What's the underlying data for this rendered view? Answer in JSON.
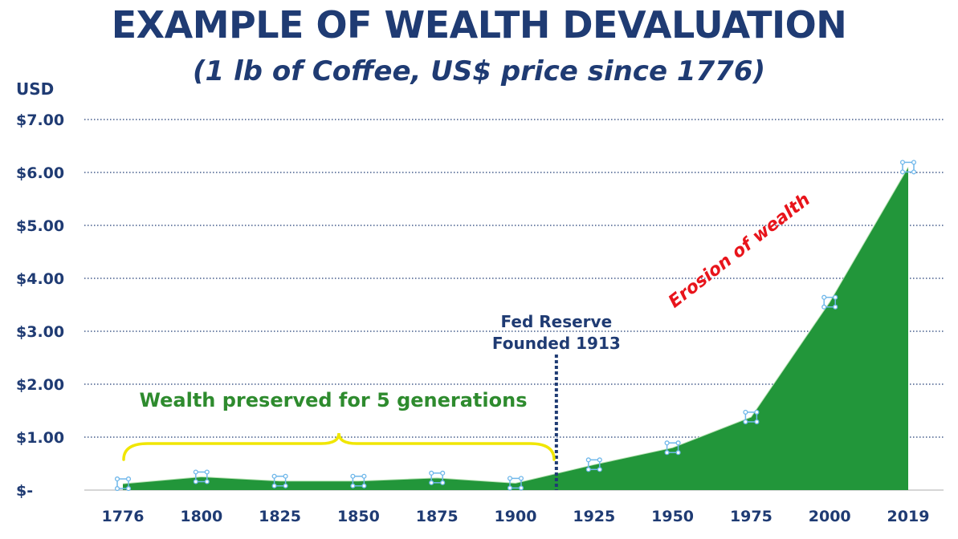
{
  "title": "EXAMPLE OF WEALTH DEVALUATION",
  "subtitle": "(1 lb of Coffee, US$ price since 1776)",
  "chart_data": {
    "type": "area",
    "ylabel": "USD",
    "ylim": [
      0,
      7
    ],
    "y_ticks": [
      {
        "value": 0,
        "label": "$-"
      },
      {
        "value": 1,
        "label": "$1.00"
      },
      {
        "value": 2,
        "label": "$2.00"
      },
      {
        "value": 3,
        "label": "$3.00"
      },
      {
        "value": 4,
        "label": "$4.00"
      },
      {
        "value": 5,
        "label": "$5.00"
      },
      {
        "value": 6,
        "label": "$6.00"
      },
      {
        "value": 7,
        "label": "$7.00"
      }
    ],
    "categories": [
      "1776",
      "1800",
      "1825",
      "1850",
      "1875",
      "1900",
      "1925",
      "1950",
      "1975",
      "2000",
      "2019"
    ],
    "values": [
      0.12,
      0.25,
      0.17,
      0.17,
      0.23,
      0.13,
      0.48,
      0.8,
      1.38,
      3.55,
      6.1
    ],
    "grid": true,
    "fill_color": "#22963a",
    "marker_color": "#6fb7ea",
    "annotations": {
      "fed_line": {
        "lines": [
          "Fed Reserve",
          "Founded 1913"
        ],
        "year": 1913
      },
      "brace": {
        "text": "Wealth preserved for 5 generations",
        "from": 1776,
        "to": 1913,
        "color": "#f0e600"
      },
      "erosion": {
        "text": "Erosion of wealth",
        "color": "#e8141b"
      }
    }
  }
}
